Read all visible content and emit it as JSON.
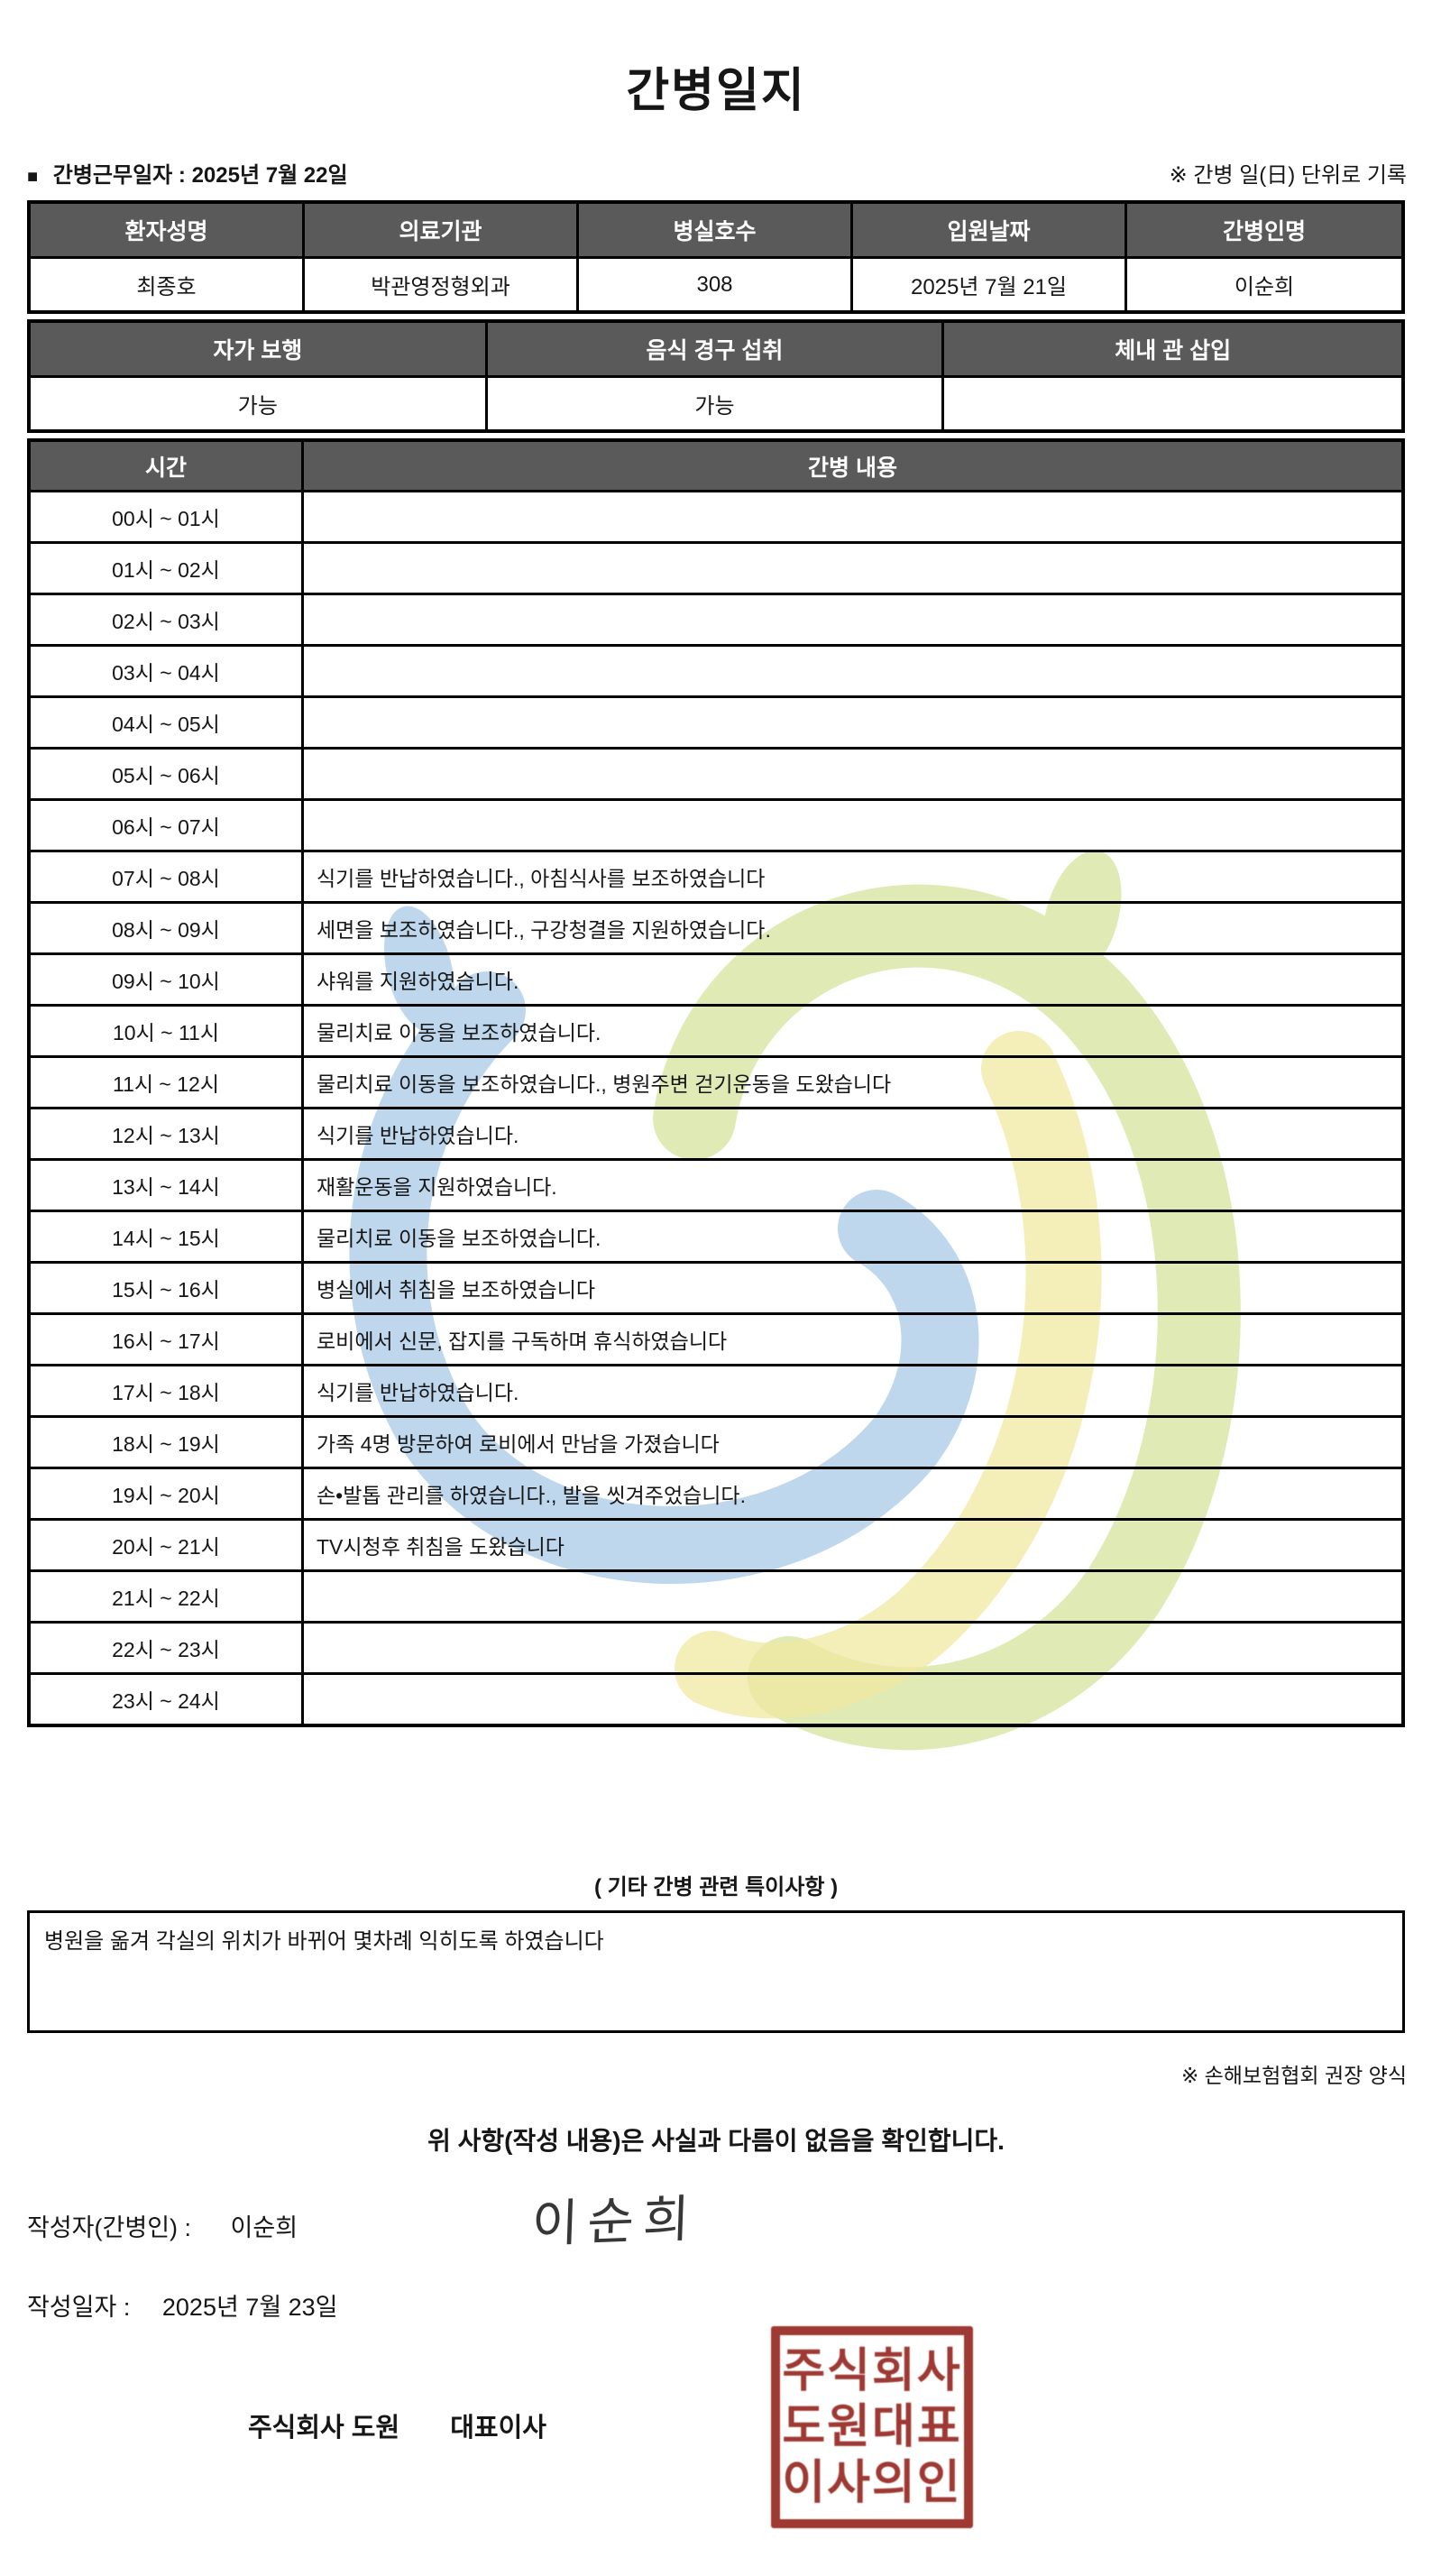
{
  "title": "간병일지",
  "meta": {
    "bullet": "■",
    "work_date_label": "간병근무일자  :",
    "work_date_value": "2025년 7월 22일",
    "unit_note": "※ 간병 일(日) 단위로 기록"
  },
  "patient_table": {
    "headers": [
      "환자성명",
      "의료기관",
      "병실호수",
      "입원날짜",
      "간병인명"
    ],
    "values": [
      "최종호",
      "박관영정형외과",
      "308",
      "2025년 7월 21일",
      "이순희"
    ]
  },
  "status_table": {
    "headers": [
      "자가 보행",
      "음식 경구 섭취",
      "체내 관 삽입"
    ],
    "values": [
      "가능",
      "가능",
      ""
    ]
  },
  "log_table": {
    "time_header": "시간",
    "content_header": "간병 내용",
    "rows": [
      {
        "time": "00시 ~ 01시",
        "content": ""
      },
      {
        "time": "01시 ~ 02시",
        "content": ""
      },
      {
        "time": "02시 ~ 03시",
        "content": ""
      },
      {
        "time": "03시 ~ 04시",
        "content": ""
      },
      {
        "time": "04시 ~ 05시",
        "content": ""
      },
      {
        "time": "05시 ~ 06시",
        "content": ""
      },
      {
        "time": "06시 ~ 07시",
        "content": ""
      },
      {
        "time": "07시 ~ 08시",
        "content": "식기를 반납하였습니다., 아침식사를 보조하였습니다"
      },
      {
        "time": "08시 ~ 09시",
        "content": "세면을 보조하였습니다., 구강청결을 지원하였습니다."
      },
      {
        "time": "09시 ~ 10시",
        "content": "샤워를 지원하였습니다."
      },
      {
        "time": "10시 ~ 11시",
        "content": "물리치료 이동을 보조하였습니다."
      },
      {
        "time": "11시 ~ 12시",
        "content": "물리치료 이동을 보조하였습니다., 병원주변 걷기운동을 도왔습니다"
      },
      {
        "time": "12시 ~ 13시",
        "content": "식기를 반납하였습니다."
      },
      {
        "time": "13시 ~ 14시",
        "content": "재활운동을 지원하였습니다."
      },
      {
        "time": "14시 ~ 15시",
        "content": "물리치료 이동을 보조하였습니다."
      },
      {
        "time": "15시 ~ 16시",
        "content": "병실에서 취침을 보조하였습니다"
      },
      {
        "time": "16시 ~ 17시",
        "content": "로비에서 신문, 잡지를 구독하며 휴식하였습니다"
      },
      {
        "time": "17시 ~ 18시",
        "content": "식기를 반납하였습니다."
      },
      {
        "time": "18시 ~ 19시",
        "content": "가족 4명 방문하여 로비에서 만남을 가졌습니다"
      },
      {
        "time": "19시 ~ 20시",
        "content": "손•발톱 관리를 하였습니다., 발을 씻겨주었습니다."
      },
      {
        "time": "20시 ~ 21시",
        "content": "TV시청후 취침을 도왔습니다"
      },
      {
        "time": "21시 ~ 22시",
        "content": ""
      },
      {
        "time": "22시 ~ 23시",
        "content": ""
      },
      {
        "time": "23시 ~ 24시",
        "content": ""
      }
    ]
  },
  "notes": {
    "heading": "( 기타 간병 관련 특이사항 )",
    "content": "병원을 옮겨 각실의 위치가 바뀌어 몇차례  익히도록 하였습니다",
    "form_note": "※ 손해보험협회 권장 양식"
  },
  "footer": {
    "confirmation": "위 사항(작성 내용)은 사실과 다름이 없음을 확인합니다.",
    "writer_label": "작성자(간병인) :",
    "writer_name": "이순희",
    "signature": "이순희",
    "date_label": "작성일자 :",
    "date_value": "2025년 7월 23일",
    "company_name": "주식회사 도원",
    "company_title": "대표이사",
    "stamp_lines": [
      "주식회사",
      "도원대표",
      "이사의인"
    ]
  },
  "colors": {
    "header_bg": "#5a5a5a",
    "border": "#000000",
    "stamp_red": "#9e3a33",
    "watermark_blue": "#aecde9",
    "watermark_green": "#d9e5a3",
    "watermark_yellow": "#ece289"
  }
}
